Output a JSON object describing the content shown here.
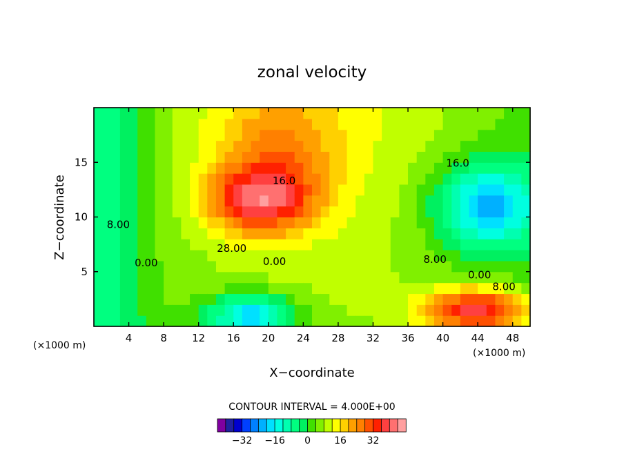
{
  "chart_data": {
    "type": "heatmap",
    "title": "zonal velocity",
    "xlabel": "X−coordinate",
    "ylabel": "Z−coordinate",
    "x_unit_left": "(×1000 m)",
    "x_unit_right": "(×1000 m)",
    "x_ticks": [
      4,
      8,
      12,
      16,
      20,
      24,
      28,
      32,
      36,
      40,
      44,
      48
    ],
    "y_ticks": [
      5,
      10,
      15
    ],
    "xlim": [
      0,
      50
    ],
    "ylim": [
      0,
      20
    ],
    "contour_interval_text": "CONTOUR INTERVAL = 4.000E+00",
    "contour_interval": 4,
    "contour_labels": [
      {
        "text": "16.0",
        "x": 21.8,
        "z": 13.0
      },
      {
        "text": "28.00",
        "x": 15.8,
        "z": 6.8
      },
      {
        "text": "0.00",
        "x": 20.7,
        "z": 5.6
      },
      {
        "text": "8.00",
        "x": 2.8,
        "z": 9.0
      },
      {
        "text": "0.00",
        "x": 6.0,
        "z": 5.5
      },
      {
        "text": "8.00",
        "x": 39.1,
        "z": 5.8
      },
      {
        "text": "0.00",
        "x": 44.2,
        "z": 4.4
      },
      {
        "text": "8.00",
        "x": 47.0,
        "z": 3.3
      },
      {
        "text": "16.0",
        "x": 41.7,
        "z": 14.6
      }
    ],
    "field_centers": [
      {
        "x": 19,
        "z": 11.5,
        "value": 28,
        "sx": 6,
        "sz": 3
      },
      {
        "x": 21,
        "z": 16,
        "value": 14,
        "sx": 7,
        "sz": 5
      },
      {
        "x": 45,
        "z": 11,
        "value": -26,
        "sx": 6,
        "sz": 4
      },
      {
        "x": 44,
        "z": 1.5,
        "value": 34,
        "sx": 6,
        "sz": 2
      },
      {
        "x": 18,
        "z": 1,
        "value": -26,
        "sx": 5,
        "sz": 2
      }
    ],
    "colorbar": {
      "tick_labels": [
        "−32",
        "−16",
        "0",
        "16",
        "32"
      ],
      "tick_values": [
        -32,
        -16,
        0,
        16,
        32
      ],
      "colors": [
        "#8000a0",
        "#2020a0",
        "#0000d0",
        "#0040ff",
        "#0080ff",
        "#00b0ff",
        "#00e0ff",
        "#00ffe0",
        "#00ffb0",
        "#00ff80",
        "#00f060",
        "#40e000",
        "#80f000",
        "#c0ff00",
        "#ffff00",
        "#ffd000",
        "#ffa000",
        "#ff8000",
        "#ff5000",
        "#ff2000",
        "#ff4040",
        "#ff7070",
        "#ffa0a0"
      ]
    }
  }
}
